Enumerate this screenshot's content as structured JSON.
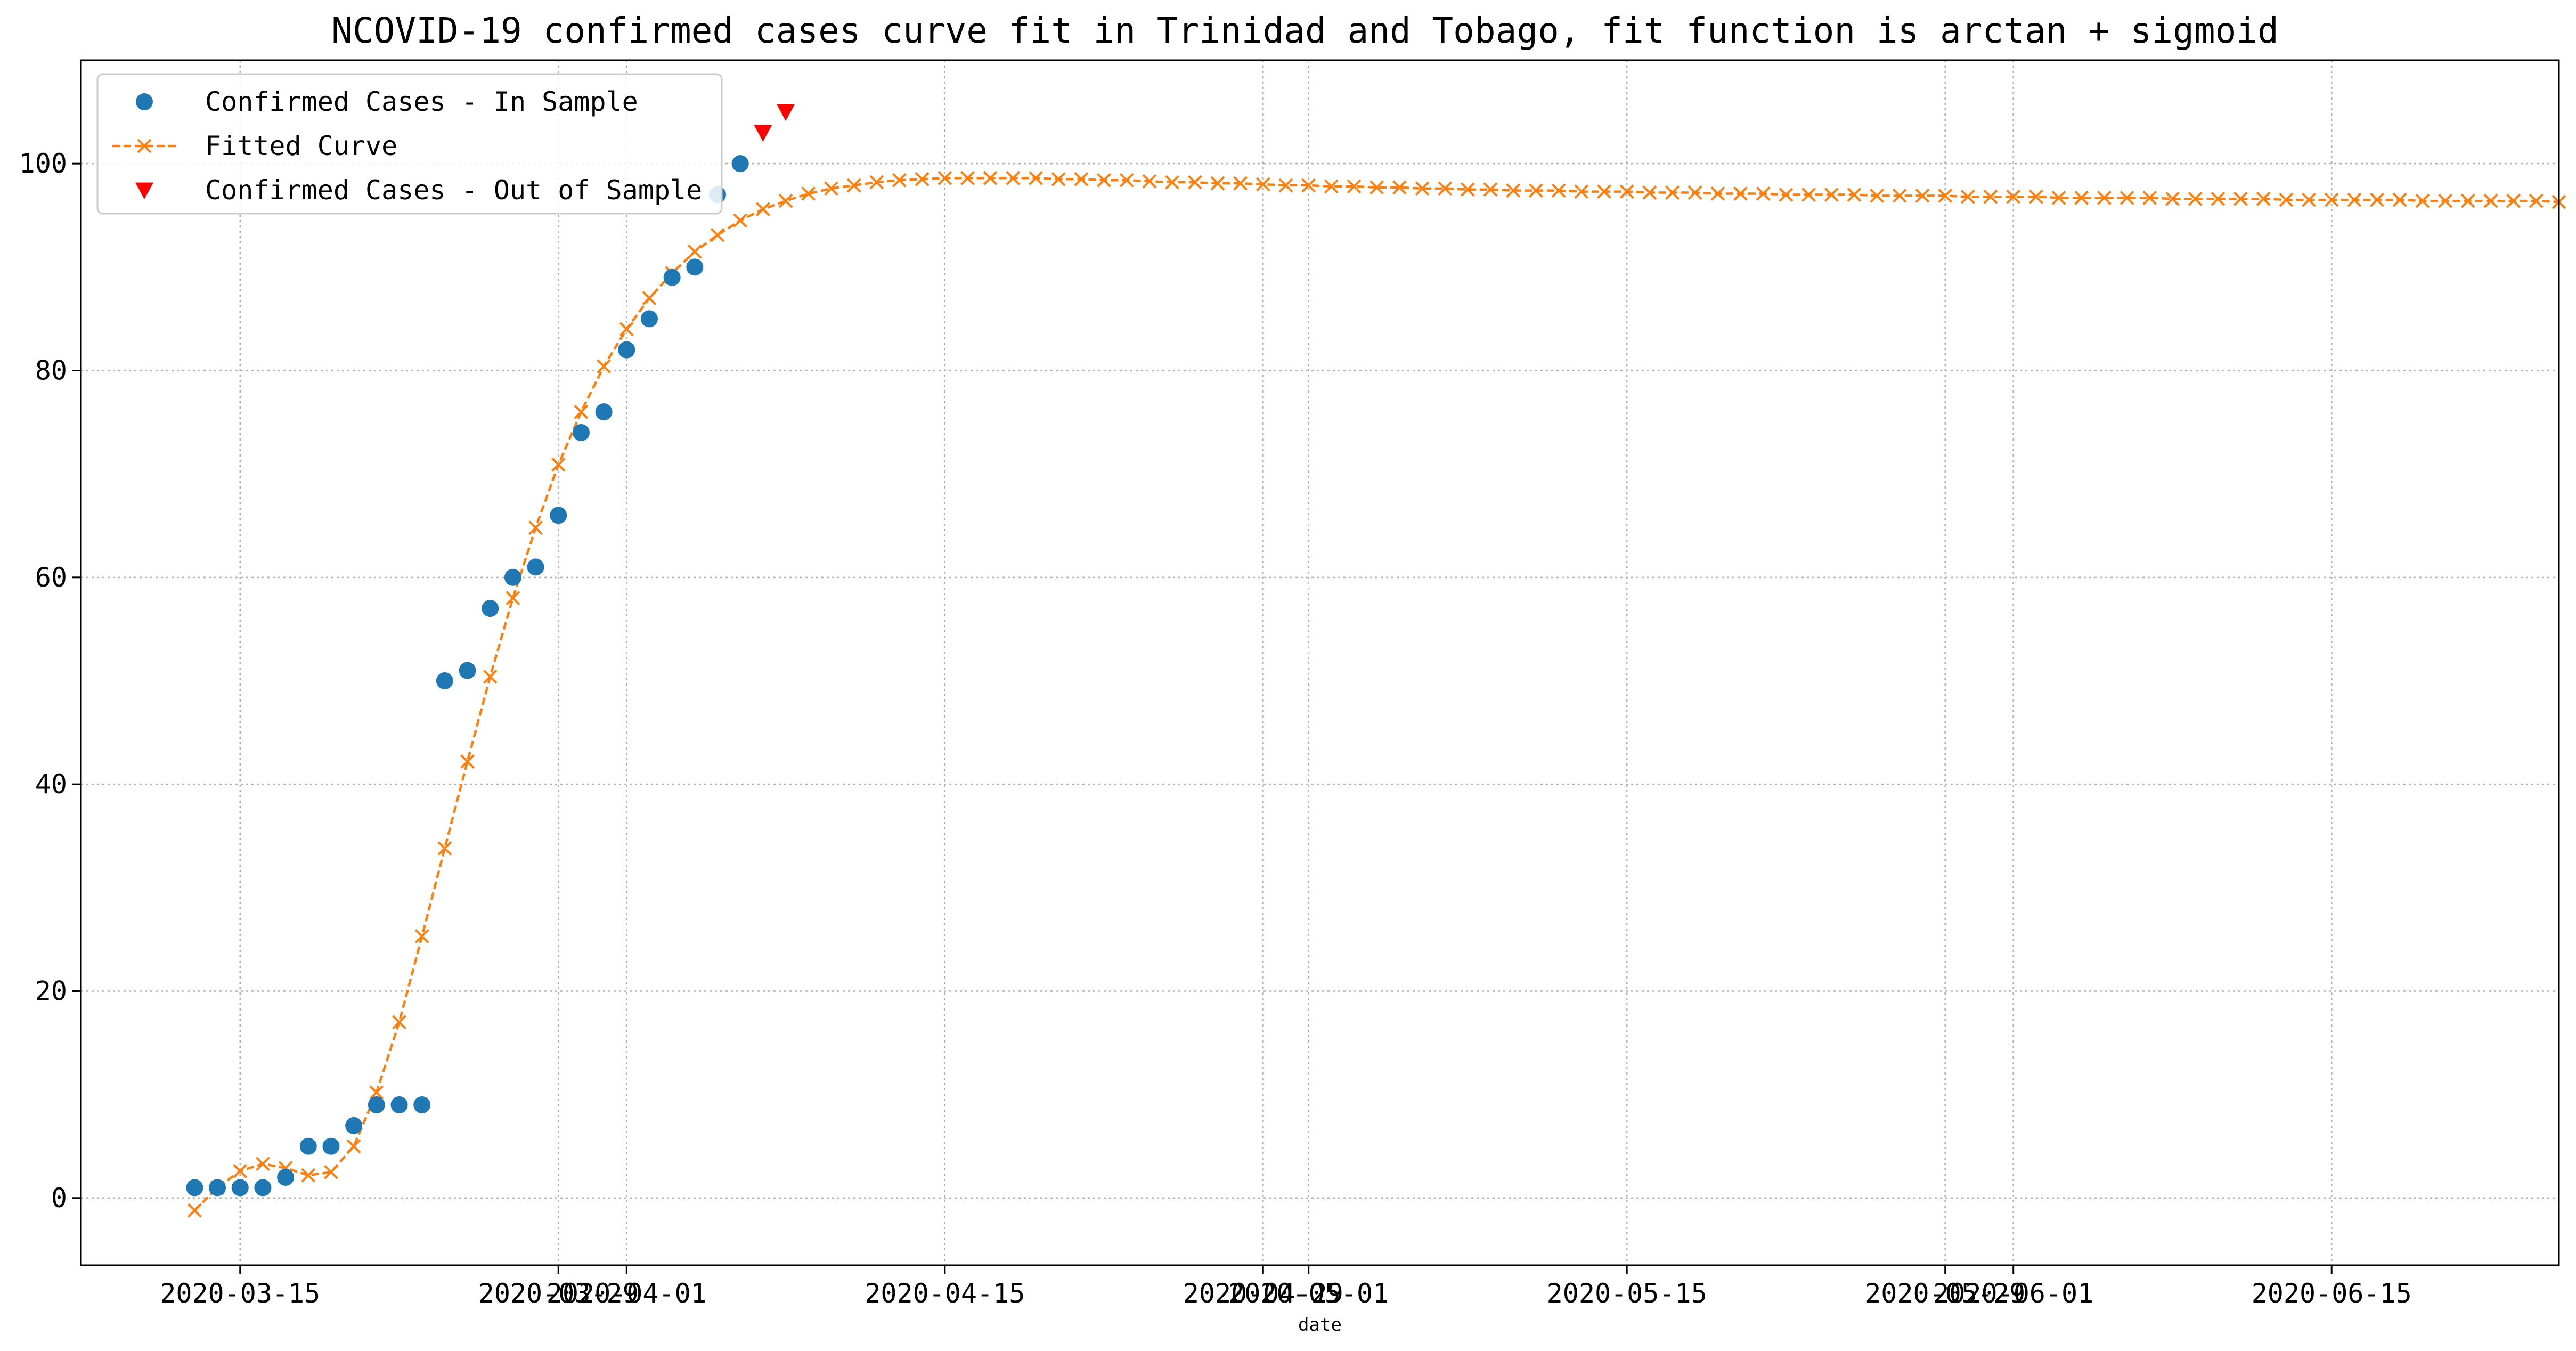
{
  "chart_data": {
    "type": "line",
    "title": "NCOVID-19 confirmed cases curve fit in Trinidad and Tobago, fit function is arctan + sigmoid",
    "xlabel": "date",
    "ylabel": "",
    "x_axis_type": "date",
    "xlim": [
      "2020-03-08",
      "2020-06-25"
    ],
    "ylim": [
      -6.5,
      110
    ],
    "grid": true,
    "legend_position": "top-left",
    "x_ticks": [
      "2020-03-15",
      "2020-03-29",
      "2020-04-01",
      "2020-04-15",
      "2020-04-29",
      "2020-05-01",
      "2020-05-15",
      "2020-05-29",
      "2020-06-01",
      "2020-06-15"
    ],
    "y_ticks": [
      0,
      20,
      40,
      60,
      80,
      100
    ],
    "series": [
      {
        "name": "Confirmed Cases - In Sample",
        "kind": "scatter",
        "marker": "circle",
        "color": "#1f77b4",
        "start_date": "2020-03-13",
        "values": [
          1,
          1,
          1,
          1,
          2,
          5,
          5,
          7,
          9,
          9,
          9,
          50,
          51,
          57,
          60,
          61,
          66,
          74,
          76,
          82,
          85,
          89,
          90,
          97,
          100
        ]
      },
      {
        "name": "Fitted Curve",
        "kind": "line",
        "marker": "x",
        "line_style": "dashed",
        "color": "#ff7f0e",
        "start_date": "2020-03-13",
        "values": [
          -1.2,
          1.0,
          2.6,
          3.3,
          2.9,
          2.2,
          2.5,
          5.0,
          10.2,
          17.0,
          25.3,
          33.8,
          42.2,
          50.4,
          58.0,
          64.8,
          70.9,
          76.0,
          80.4,
          84.0,
          87.0,
          89.4,
          91.5,
          93.1,
          94.5,
          95.6,
          96.4,
          97.1,
          97.6,
          97.9,
          98.2,
          98.4,
          98.5,
          98.6,
          98.6,
          98.6,
          98.6,
          98.6,
          98.5,
          98.5,
          98.4,
          98.4,
          98.3,
          98.2,
          98.2,
          98.1,
          98.1,
          98.0,
          97.9,
          97.9,
          97.8,
          97.8,
          97.7,
          97.7,
          97.6,
          97.6,
          97.5,
          97.5,
          97.4,
          97.4,
          97.4,
          97.3,
          97.3,
          97.3,
          97.2,
          97.2,
          97.2,
          97.1,
          97.1,
          97.1,
          97.0,
          97.0,
          97.0,
          97.0,
          96.9,
          96.9,
          96.9,
          96.9,
          96.8,
          96.8,
          96.8,
          96.8,
          96.7,
          96.7,
          96.7,
          96.7,
          96.7,
          96.6,
          96.6,
          96.6,
          96.6,
          96.6,
          96.5,
          96.5,
          96.5,
          96.5,
          96.5,
          96.5,
          96.4,
          96.4,
          96.4,
          96.4,
          96.4,
          96.4,
          96.3,
          96.3,
          96.3,
          96.3,
          96.3,
          96.3,
          96.3,
          96.2,
          96.2,
          96.2,
          96.2,
          96.2,
          96.2,
          96.2,
          96.2,
          96.1,
          96.1,
          96.1,
          96.1,
          96.1,
          96.1,
          96.1,
          96.1,
          96.1,
          96.0,
          96.0,
          96.0,
          96.0,
          96.0,
          96.0,
          96.0,
          96.0,
          96.0,
          96.0,
          96.0,
          95.9,
          95.9,
          95.9,
          95.9,
          95.9,
          95.9,
          95.9,
          95.9,
          95.9,
          95.9,
          95.9,
          95.9,
          95.9,
          95.8,
          95.8,
          95.8,
          95.8,
          95.8,
          95.8,
          95.8,
          95.8,
          95.8,
          95.8,
          95.8,
          95.8,
          95.8,
          95.8,
          95.8,
          95.7,
          95.7,
          95.7,
          95.7,
          95.7,
          95.7,
          95.7,
          95.7,
          95.7,
          95.7,
          95.7,
          95.7,
          95.7,
          95.7,
          95.7,
          95.7,
          95.7,
          95.7,
          95.6,
          95.6,
          95.6,
          95.6,
          95.6,
          95.6,
          95.6,
          95.6,
          95.6,
          95.6,
          95.6,
          95.6,
          95.6,
          95.6,
          95.6,
          95.6,
          95.6,
          95.6,
          95.6,
          95.6,
          95.6,
          95.5,
          95.5,
          95.5,
          95.5,
          95.5,
          95.5,
          95.5,
          95.5,
          95.5,
          95.5,
          95.5,
          95.5,
          95.5,
          95.5,
          95.5,
          95.5,
          95.5,
          95.5,
          95.5,
          95.5,
          95.5,
          95.5,
          95.5,
          95.5,
          95.5,
          95.4
        ]
      },
      {
        "name": "Confirmed Cases - Out of Sample",
        "kind": "scatter",
        "marker": "triangle-down",
        "color": "#ff0000",
        "start_date": "2020-04-07",
        "values": [
          103,
          105
        ]
      }
    ]
  }
}
